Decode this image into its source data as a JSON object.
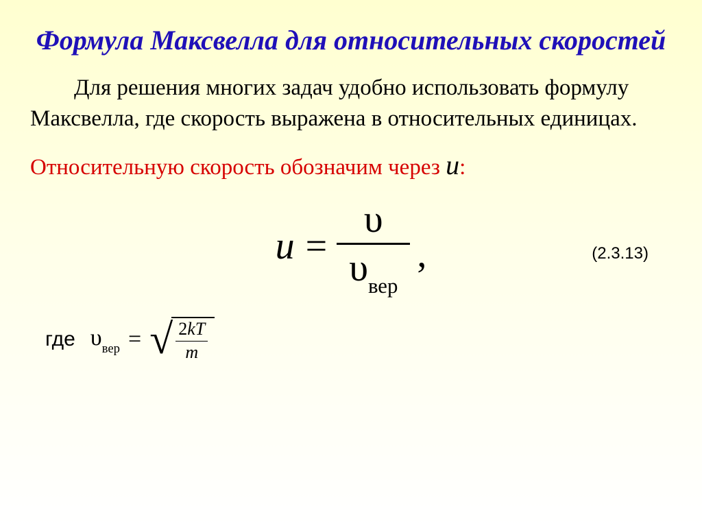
{
  "title": "Формула Максвелла для относительных скоростей",
  "paragraph": "Для решения многих задач удобно использовать формулу Максвелла, где скорость выражена в относительных единицах.",
  "red_text": "Относительную скорость обозначим через ",
  "red_var": "u",
  "red_suffix": ":",
  "eq_main": {
    "lhs": "u",
    "equals": "=",
    "numerator": "υ",
    "denom_sym": "υ",
    "denom_sub": "вер",
    "comma": ","
  },
  "eq_number": "(2.3.13)",
  "where_label": "где",
  "eq_small": {
    "lhs_sym": "υ",
    "lhs_sub": "вер",
    "equals": "=",
    "root_num": "2kT",
    "root_den": "m"
  },
  "colors": {
    "title": "#1f10b8",
    "red": "#d60000",
    "text": "#000000",
    "bg_top": "#ffffd0",
    "bg_bottom": "#ffffff"
  }
}
